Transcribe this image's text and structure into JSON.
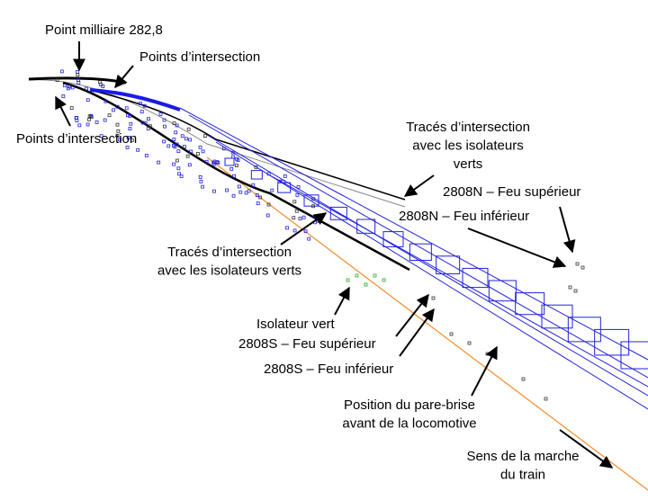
{
  "labels": [
    {
      "lines": [
        "Point milliaire 282,8"
      ]
    },
    {
      "lines": [
        "Points d’intersection"
      ]
    },
    {
      "lines": [
        "Points d’intersection"
      ]
    },
    {
      "lines": [
        "Tracés d’intersection",
        "avec les isolateurs",
        "verts"
      ]
    },
    {
      "lines": [
        "2808N – Feu supérieur"
      ]
    },
    {
      "lines": [
        "2808N – Feu inférieur"
      ]
    },
    {
      "lines": [
        "Tracés d’intersection",
        "avec les isolateurs verts"
      ]
    },
    {
      "lines": [
        "Isolateur vert"
      ]
    },
    {
      "lines": [
        "2808S – Feu supérieur"
      ]
    },
    {
      "lines": [
        "2808S – Feu inférieur"
      ]
    },
    {
      "lines": [
        "Position du pare-brise",
        "avant de la locomotive"
      ]
    },
    {
      "lines": [
        "Sens de la marche",
        "du train"
      ]
    }
  ]
}
